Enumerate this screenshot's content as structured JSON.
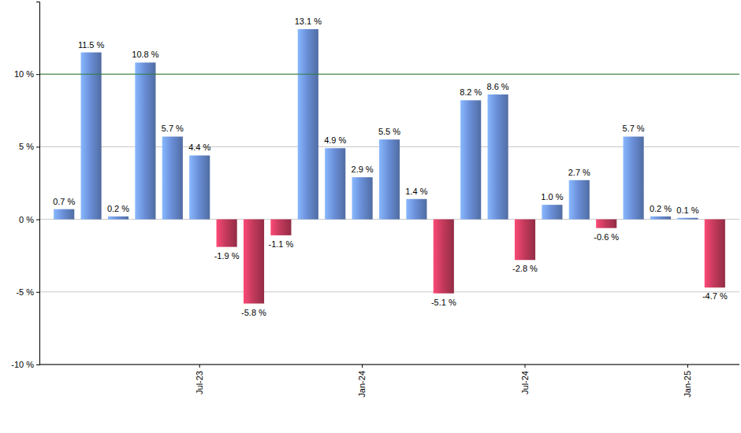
{
  "chart_data": {
    "type": "bar",
    "categories": [
      null,
      null,
      null,
      null,
      null,
      "Jul-23",
      null,
      null,
      null,
      null,
      null,
      "Jan-24",
      null,
      null,
      null,
      null,
      null,
      "Jul-24",
      null,
      null,
      null,
      null,
      null,
      "Jan-25",
      null
    ],
    "values": [
      0.7,
      11.5,
      0.2,
      10.8,
      5.7,
      4.4,
      -1.9,
      -5.8,
      -1.1,
      13.1,
      4.9,
      2.9,
      5.5,
      1.4,
      -5.1,
      8.2,
      8.6,
      -2.8,
      1.0,
      2.7,
      -0.6,
      5.7,
      0.2,
      0.1,
      -4.7
    ],
    "value_labels": [
      "0.7 %",
      "11.5 %",
      "0.2 %",
      "10.8 %",
      "5.7 %",
      "4.4 %",
      "-1.9 %",
      "-5.8 %",
      "-1.1 %",
      "13.1 %",
      "4.9 %",
      "2.9 %",
      "5.5 %",
      "1.4 %",
      "-5.1 %",
      "8.2 %",
      "8.6 %",
      "-2.8 %",
      "1.0 %",
      "2.7 %",
      "-0.6 %",
      "5.7 %",
      "0.2 %",
      "0.1 %",
      "-4.7 %"
    ],
    "colors": [
      "#6a8fd8",
      "#6a8fd8",
      "#6a8fd8",
      "#6a8fd8",
      "#6a8fd8",
      "#6a8fd8",
      "#c43a5c",
      "#c43a5c",
      "#c43a5c",
      "#6a8fd8",
      "#6a8fd8",
      "#6a8fd8",
      "#6a8fd8",
      "#6a8fd8",
      "#c43a5c",
      "#6a8fd8",
      "#6a8fd8",
      "#c43a5c",
      "#6a8fd8",
      "#6a8fd8",
      "#c43a5c",
      "#6a8fd8",
      "#6a8fd8",
      "#6a8fd8",
      "#c43a5c"
    ],
    "ylim": [
      -10,
      15
    ],
    "yticks": [
      {
        "value": -10,
        "label": "-10 %"
      },
      {
        "value": -5,
        "label": "-5 %"
      },
      {
        "value": 0,
        "label": "0 %"
      },
      {
        "value": 5,
        "label": "5 %"
      },
      {
        "value": 10,
        "label": "10 %"
      }
    ],
    "hline": 10,
    "grid": true,
    "data_labels": true
  }
}
